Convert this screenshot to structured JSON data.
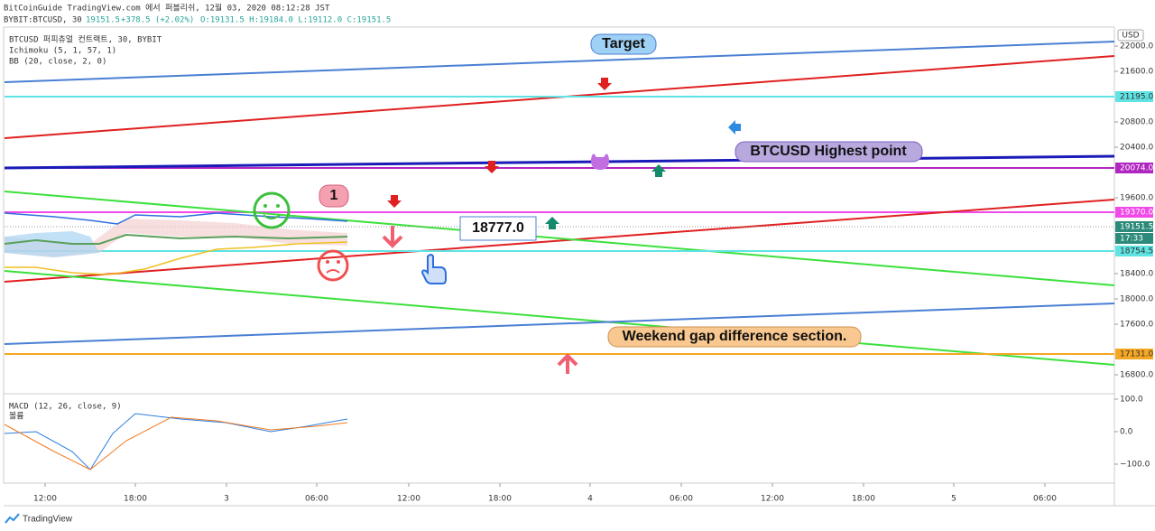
{
  "header": {
    "line1": "BitCoinGuide TradingView.com 에서 퍼블리쉬, 12월 03, 2020 08:12:28 JST",
    "symbol": "BYBIT:BTCUSD, 30",
    "last": "19151.5",
    "change": "+378.5 (+2.02%)",
    "ohlc": "O:19131.5 H:19184.0 L:19112.0 C:19151.5"
  },
  "legend": {
    "instrument": "BTCUSD 퍼피츄얼 컨트랙트, 30, BYBIT",
    "ichimoku": "Ichimoku (5, 1, 57, 1)",
    "bb": "BB (20, close, 2, 0)",
    "macd": "MACD (12, 26, close, 9)",
    "volume": "볼륨"
  },
  "price_axis": {
    "currency": "USD",
    "labels": [
      "22000.0",
      "21600.0",
      "20800.0",
      "20400.0",
      "19600.0",
      "18400.0",
      "18000.0",
      "17600.0",
      "16800.0"
    ],
    "badges": [
      "21195.0",
      "20074.0",
      "19370.0",
      "19151.5",
      "17:33",
      "18754.5",
      "17131.0"
    ]
  },
  "macd_axis": {
    "labels": [
      "100.0",
      "0.0",
      "−100.0"
    ]
  },
  "time_axis": {
    "labels": [
      "12:00",
      "18:00",
      "3",
      "06:00",
      "12:00",
      "18:00",
      "4",
      "06:00",
      "12:00",
      "18:00",
      "5",
      "06:00"
    ]
  },
  "annotations": {
    "target": "Target",
    "highest": "BTCUSD Highest point",
    "one": "1",
    "price_box": "18777.0",
    "weekend": "Weekend gap difference section."
  },
  "footer": {
    "brand": "TradingView"
  }
}
